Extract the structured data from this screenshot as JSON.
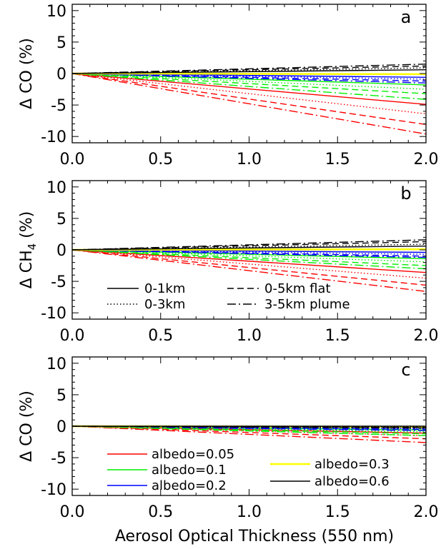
{
  "xlabel": "Aerosol Optical Thickness (550 nm)",
  "colors": {
    "albedo=0.05": "#ff0000",
    "albedo=0.1": "#00ee00",
    "albedo=0.2": "#0000ff",
    "albedo=0.3": "#ffff00",
    "albedo=0.6": "#000000"
  },
  "linestyles": {
    "0-1km": "solid",
    "0-3km": "dotted",
    "0-5km flat": "dashed",
    "3-5km plume": "dashdot"
  },
  "chart_data": [
    {
      "type": "line",
      "panel": "a",
      "ylabel_prefix": "Δ CO",
      "ylabel_sub": "",
      "ylabel_suffix": "(%)",
      "xlim": [
        0.0,
        2.0
      ],
      "ylim": [
        -11,
        11
      ],
      "xticks": [
        "0.0",
        "0.5",
        "1.0",
        "1.5",
        "2.0"
      ],
      "yticks": [
        "-10",
        "-5",
        "0",
        "5",
        "10"
      ],
      "x": [
        0.0,
        2.0
      ],
      "series": [
        {
          "name": "albedo=0.05 0-1km",
          "color": "albedo=0.05",
          "style": "0-1km",
          "values": [
            0.0,
            -4.9
          ]
        },
        {
          "name": "albedo=0.05 0-3km",
          "color": "albedo=0.05",
          "style": "0-3km",
          "values": [
            0.0,
            -6.4
          ]
        },
        {
          "name": "albedo=0.05 0-5km flat",
          "color": "albedo=0.05",
          "style": "0-5km flat",
          "values": [
            0.0,
            -8.1
          ]
        },
        {
          "name": "albedo=0.05 3-5km plume",
          "color": "albedo=0.05",
          "style": "3-5km plume",
          "values": [
            0.0,
            -9.6
          ]
        },
        {
          "name": "albedo=0.1 0-1km",
          "color": "albedo=0.1",
          "style": "0-1km",
          "values": [
            0.0,
            -1.8
          ]
        },
        {
          "name": "albedo=0.1 0-3km",
          "color": "albedo=0.1",
          "style": "0-3km",
          "values": [
            0.0,
            -2.5
          ]
        },
        {
          "name": "albedo=0.1 0-5km flat",
          "color": "albedo=0.1",
          "style": "0-5km flat",
          "values": [
            0.0,
            -3.2
          ]
        },
        {
          "name": "albedo=0.1 3-5km plume",
          "color": "albedo=0.1",
          "style": "3-5km plume",
          "values": [
            0.0,
            -4.1
          ]
        },
        {
          "name": "albedo=0.2 0-1km",
          "color": "albedo=0.2",
          "style": "0-1km",
          "values": [
            0.0,
            -0.6
          ]
        },
        {
          "name": "albedo=0.2 0-3km",
          "color": "albedo=0.2",
          "style": "0-3km",
          "values": [
            0.0,
            -0.9
          ]
        },
        {
          "name": "albedo=0.2 0-5km flat",
          "color": "albedo=0.2",
          "style": "0-5km flat",
          "values": [
            0.0,
            -1.2
          ]
        },
        {
          "name": "albedo=0.2 3-5km plume",
          "color": "albedo=0.2",
          "style": "3-5km plume",
          "values": [
            0.0,
            -1.5
          ]
        },
        {
          "name": "albedo=0.3 0-1km",
          "color": "albedo=0.3",
          "style": "0-1km",
          "values": [
            0.0,
            -0.1
          ]
        },
        {
          "name": "albedo=0.6 0-1km",
          "color": "albedo=0.6",
          "style": "0-1km",
          "values": [
            0.0,
            0.6
          ]
        },
        {
          "name": "albedo=0.6 0-3km",
          "color": "albedo=0.6",
          "style": "0-3km",
          "values": [
            0.0,
            0.9
          ]
        },
        {
          "name": "albedo=0.6 0-5km flat",
          "color": "albedo=0.6",
          "style": "0-5km flat",
          "values": [
            0.0,
            1.2
          ]
        },
        {
          "name": "albedo=0.6 3-5km plume",
          "color": "albedo=0.6",
          "style": "3-5km plume",
          "values": [
            0.0,
            1.5
          ]
        }
      ]
    },
    {
      "type": "line",
      "panel": "b",
      "ylabel_prefix": "Δ CH",
      "ylabel_sub": "4",
      "ylabel_suffix": "(%)",
      "xlim": [
        0.0,
        2.0
      ],
      "ylim": [
        -11,
        11
      ],
      "xticks": [
        "0.0",
        "0.5",
        "1.0",
        "1.5",
        "2.0"
      ],
      "yticks": [
        "-10",
        "-5",
        "0",
        "5",
        "10"
      ],
      "x": [
        0.0,
        2.0
      ],
      "legend": {
        "placement": "lower-left",
        "entries": [
          {
            "label": "0-1km",
            "style": "0-1km"
          },
          {
            "label": "0-5km flat",
            "style": "0-5km flat"
          },
          {
            "label": "0-3km",
            "style": "0-3km"
          },
          {
            "label": "3-5km plume",
            "style": "3-5km plume"
          }
        ]
      },
      "series": [
        {
          "name": "albedo=0.05 0-1km",
          "color": "albedo=0.05",
          "style": "0-1km",
          "values": [
            0.0,
            -3.6
          ]
        },
        {
          "name": "albedo=0.05 0-3km",
          "color": "albedo=0.05",
          "style": "0-3km",
          "values": [
            0.0,
            -4.5
          ]
        },
        {
          "name": "albedo=0.05 0-5km flat",
          "color": "albedo=0.05",
          "style": "0-5km flat",
          "values": [
            0.0,
            -5.6
          ]
        },
        {
          "name": "albedo=0.05 3-5km plume",
          "color": "albedo=0.05",
          "style": "3-5km plume",
          "values": [
            0.0,
            -6.6
          ]
        },
        {
          "name": "albedo=0.1 0-1km",
          "color": "albedo=0.1",
          "style": "0-1km",
          "values": [
            0.0,
            -1.4
          ]
        },
        {
          "name": "albedo=0.1 0-3km",
          "color": "albedo=0.1",
          "style": "0-3km",
          "values": [
            0.0,
            -1.9
          ]
        },
        {
          "name": "albedo=0.1 0-5km flat",
          "color": "albedo=0.1",
          "style": "0-5km flat",
          "values": [
            0.0,
            -2.5
          ]
        },
        {
          "name": "albedo=0.1 3-5km plume",
          "color": "albedo=0.1",
          "style": "3-5km plume",
          "values": [
            0.0,
            -3.0
          ]
        },
        {
          "name": "albedo=0.2 0-1km",
          "color": "albedo=0.2",
          "style": "0-1km",
          "values": [
            0.0,
            -0.4
          ]
        },
        {
          "name": "albedo=0.2 0-3km",
          "color": "albedo=0.2",
          "style": "0-3km",
          "values": [
            0.0,
            -0.7
          ]
        },
        {
          "name": "albedo=0.2 0-5km flat",
          "color": "albedo=0.2",
          "style": "0-5km flat",
          "values": [
            0.0,
            -1.0
          ]
        },
        {
          "name": "albedo=0.2 3-5km plume",
          "color": "albedo=0.2",
          "style": "3-5km plume",
          "values": [
            0.0,
            -1.2
          ]
        },
        {
          "name": "albedo=0.3 0-1km",
          "color": "albedo=0.3",
          "style": "0-1km",
          "values": [
            0.0,
            0.1
          ]
        },
        {
          "name": "albedo=0.6 0-1km",
          "color": "albedo=0.6",
          "style": "0-1km",
          "values": [
            0.0,
            0.6
          ]
        },
        {
          "name": "albedo=0.6 0-3km",
          "color": "albedo=0.6",
          "style": "0-3km",
          "values": [
            0.0,
            0.9
          ]
        },
        {
          "name": "albedo=0.6 0-5km flat",
          "color": "albedo=0.6",
          "style": "0-5km flat",
          "values": [
            0.0,
            1.3
          ]
        },
        {
          "name": "albedo=0.6 3-5km plume",
          "color": "albedo=0.6",
          "style": "3-5km plume",
          "values": [
            0.0,
            1.6
          ]
        }
      ]
    },
    {
      "type": "line",
      "panel": "c",
      "ylabel_prefix": "Δ CO",
      "ylabel_sub": "",
      "ylabel_suffix": "(%)",
      "xlim": [
        0.0,
        2.0
      ],
      "ylim": [
        -11,
        11
      ],
      "xticks": [
        "0.0",
        "0.5",
        "1.0",
        "1.5",
        "2.0"
      ],
      "yticks": [
        "-10",
        "-5",
        "0",
        "5",
        "10"
      ],
      "x": [
        0.0,
        2.0
      ],
      "legend": {
        "placement": "lower-left",
        "entries": [
          {
            "label": "albedo=0.05",
            "color": "albedo=0.05"
          },
          {
            "label": "albedo=0.1",
            "color": "albedo=0.1"
          },
          {
            "label": "albedo=0.3",
            "color": "albedo=0.3"
          },
          {
            "label": "albedo=0.2",
            "color": "albedo=0.2"
          },
          {
            "label": "albedo=0.6",
            "color": "albedo=0.6"
          }
        ]
      },
      "series": [
        {
          "name": "albedo=0.05 0-1km",
          "color": "albedo=0.05",
          "style": "0-1km",
          "values": [
            0.0,
            -1.1
          ]
        },
        {
          "name": "albedo=0.05 0-3km",
          "color": "albedo=0.05",
          "style": "0-3km",
          "values": [
            0.0,
            -1.5
          ]
        },
        {
          "name": "albedo=0.05 0-5km flat",
          "color": "albedo=0.05",
          "style": "0-5km flat",
          "values": [
            0.0,
            -2.0
          ]
        },
        {
          "name": "albedo=0.05 3-5km plume",
          "color": "albedo=0.05",
          "style": "3-5km plume",
          "values": [
            0.0,
            -2.6
          ]
        },
        {
          "name": "albedo=0.1 0-1km",
          "color": "albedo=0.1",
          "style": "0-1km",
          "values": [
            0.0,
            -0.6
          ]
        },
        {
          "name": "albedo=0.1 0-3km",
          "color": "albedo=0.1",
          "style": "0-3km",
          "values": [
            0.0,
            -0.9
          ]
        },
        {
          "name": "albedo=0.1 0-5km flat",
          "color": "albedo=0.1",
          "style": "0-5km flat",
          "values": [
            0.0,
            -1.2
          ]
        },
        {
          "name": "albedo=0.1 3-5km plume",
          "color": "albedo=0.1",
          "style": "3-5km plume",
          "values": [
            0.0,
            -1.5
          ]
        },
        {
          "name": "albedo=0.2 0-1km",
          "color": "albedo=0.2",
          "style": "0-1km",
          "values": [
            0.0,
            -0.2
          ]
        },
        {
          "name": "albedo=0.2 0-3km",
          "color": "albedo=0.2",
          "style": "0-3km",
          "values": [
            0.0,
            -0.4
          ]
        },
        {
          "name": "albedo=0.2 0-5km flat",
          "color": "albedo=0.2",
          "style": "0-5km flat",
          "values": [
            0.0,
            -0.5
          ]
        },
        {
          "name": "albedo=0.2 3-5km plume",
          "color": "albedo=0.2",
          "style": "3-5km plume",
          "values": [
            0.0,
            -0.7
          ]
        },
        {
          "name": "albedo=0.3 0-1km",
          "color": "albedo=0.3",
          "style": "0-1km",
          "values": [
            0.0,
            -0.1
          ]
        },
        {
          "name": "albedo=0.6 0-1km",
          "color": "albedo=0.6",
          "style": "0-1km",
          "values": [
            0.0,
            0.0
          ]
        },
        {
          "name": "albedo=0.6 0-3km",
          "color": "albedo=0.6",
          "style": "0-3km",
          "values": [
            0.0,
            -0.1
          ]
        },
        {
          "name": "albedo=0.6 0-5km flat",
          "color": "albedo=0.6",
          "style": "0-5km flat",
          "values": [
            0.0,
            -0.2
          ]
        },
        {
          "name": "albedo=0.6 3-5km plume",
          "color": "albedo=0.6",
          "style": "3-5km plume",
          "values": [
            0.0,
            -0.3
          ]
        }
      ]
    }
  ]
}
